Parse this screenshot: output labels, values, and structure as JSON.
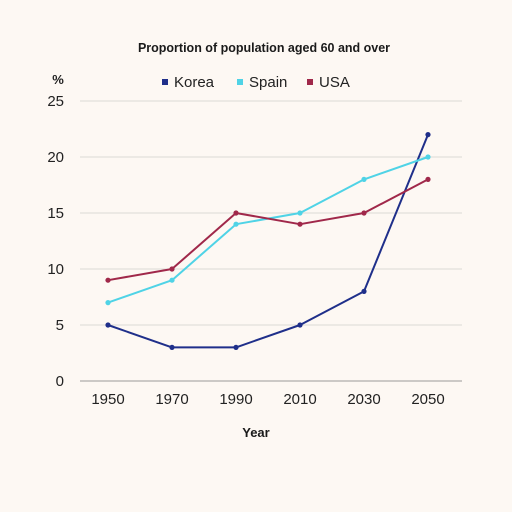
{
  "chart_data": {
    "type": "line",
    "title": "Proportion of population aged 60 and over",
    "ylabel": "%",
    "xlabel": "Year",
    "categories": [
      "1950",
      "1970",
      "1990",
      "2010",
      "2030",
      "2050"
    ],
    "yticks": [
      "0",
      "5",
      "10",
      "15",
      "20",
      "25"
    ],
    "ylim": [
      0,
      25
    ],
    "grid": true,
    "legend_position": "top",
    "series": [
      {
        "name": "Korea",
        "color": "#1f2f8a",
        "values": [
          5,
          3,
          3,
          5,
          8,
          22
        ]
      },
      {
        "name": "Spain",
        "color": "#4fd3e6",
        "values": [
          7,
          9,
          14,
          15,
          18,
          20
        ]
      },
      {
        "name": "USA",
        "color": "#a0284a",
        "values": [
          9,
          10,
          15,
          14,
          15,
          18
        ]
      }
    ]
  }
}
